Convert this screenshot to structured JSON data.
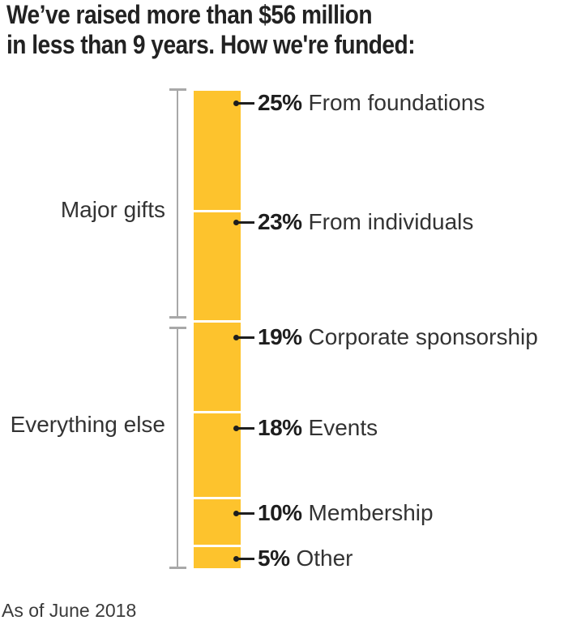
{
  "title": {
    "line1": "We’ve raised more than $56 million",
    "line2": "in less than 9 years. How we're funded:"
  },
  "footer": {
    "text": "As of June 2018"
  },
  "chart_data": {
    "type": "bar",
    "variant": "stacked-vertical-single-column",
    "title": "We’ve raised more than $56 million in less than 9 years. How we're funded:",
    "note": "As of June 2018",
    "unit": "%",
    "categories": [
      "From foundations",
      "From individuals",
      "Corporate sponsorship",
      "Events",
      "Membership",
      "Other"
    ],
    "values": [
      25,
      23,
      19,
      18,
      10,
      5
    ],
    "value_labels": [
      "25%",
      "23%",
      "19%",
      "18%",
      "10%",
      "5%"
    ],
    "groups": [
      {
        "label": "Major gifts",
        "categories": [
          "From foundations",
          "From individuals"
        ],
        "total": 48
      },
      {
        "label": "Everything else",
        "categories": [
          "Corporate sponsorship",
          "Events",
          "Membership",
          "Other"
        ],
        "total": 52
      }
    ],
    "colors": {
      "bar": "#FDC32D",
      "separator": "#FFFFFF",
      "bracket": "#A8A8A8",
      "value_label": "#1E1E1E",
      "category_label": "#333333",
      "leader": "#1E1E1E"
    },
    "grid": false,
    "legend_position": "leader-labels-right"
  }
}
